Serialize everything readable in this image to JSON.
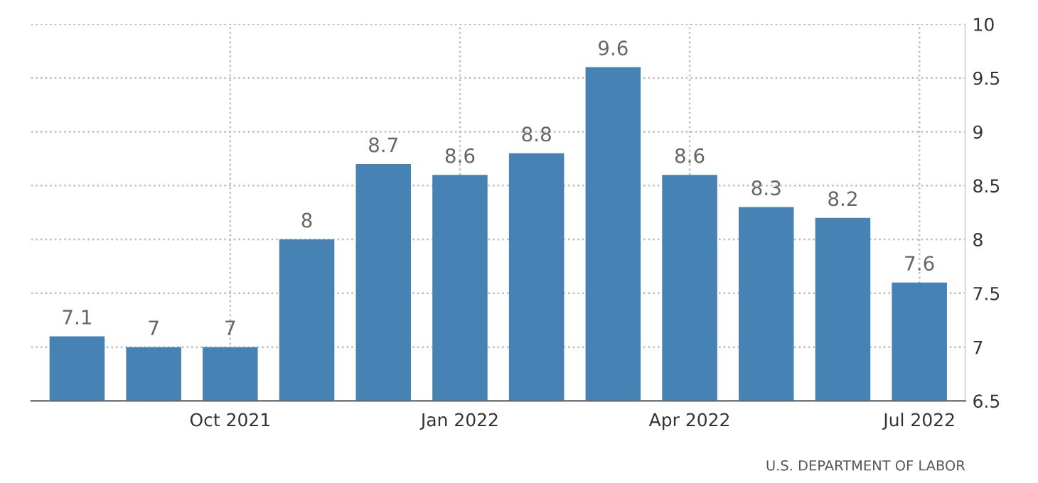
{
  "chart_data": {
    "type": "bar",
    "categories": [
      null,
      null,
      "Oct 2021",
      null,
      null,
      "Jan 2022",
      null,
      null,
      "Apr 2022",
      null,
      null,
      "Jul 2022"
    ],
    "values": [
      7.1,
      7,
      7,
      8,
      8.7,
      8.6,
      8.8,
      9.6,
      8.6,
      8.3,
      8.2,
      7.6
    ],
    "color": "#4682b4",
    "ylim": [
      6.5,
      10
    ],
    "yticks": [
      6.5,
      7,
      7.5,
      8,
      8.5,
      9,
      9.5,
      10
    ],
    "grid": true,
    "data_labels": true,
    "annotations": [
      "U.S. DEPARTMENT OF LABOR"
    ]
  }
}
